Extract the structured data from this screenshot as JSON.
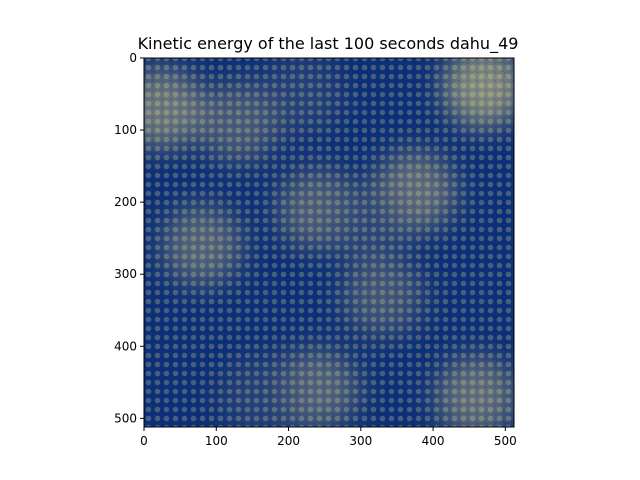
{
  "chart_data": {
    "type": "heatmap",
    "title": "Kinetic energy of the last 100 seconds dahu_49",
    "xlabel": "",
    "ylabel": "",
    "xlim": [
      0,
      512
    ],
    "ylim": [
      512,
      0
    ],
    "y_axis_inverted": true,
    "grid": false,
    "colorbar": false,
    "colors": {
      "low": "#0b2f78",
      "mid": "#5b6a7a",
      "high": "#f3e286"
    },
    "x_ticks": [
      0,
      100,
      200,
      300,
      400,
      500
    ],
    "y_ticks": [
      0,
      100,
      200,
      300,
      400,
      500
    ],
    "field_features": [
      {
        "x": 240,
        "y": 210,
        "value": 0.52
      },
      {
        "x": 470,
        "y": 40,
        "value": 0.75
      },
      {
        "x": 25,
        "y": 70,
        "value": 0.65
      },
      {
        "x": 460,
        "y": 470,
        "value": 0.6
      },
      {
        "x": 80,
        "y": 260,
        "value": 0.55
      },
      {
        "x": 375,
        "y": 185,
        "value": 0.6
      },
      {
        "x": 240,
        "y": 460,
        "value": 0.55
      },
      {
        "x": 130,
        "y": 90,
        "value": 0.5
      },
      {
        "x": 330,
        "y": 330,
        "value": 0.45
      },
      {
        "x": 160,
        "y": 470,
        "value": 0.2
      },
      {
        "x": 220,
        "y": 50,
        "value": 0.2
      },
      {
        "x": 310,
        "y": 230,
        "value": 0.25
      }
    ]
  }
}
